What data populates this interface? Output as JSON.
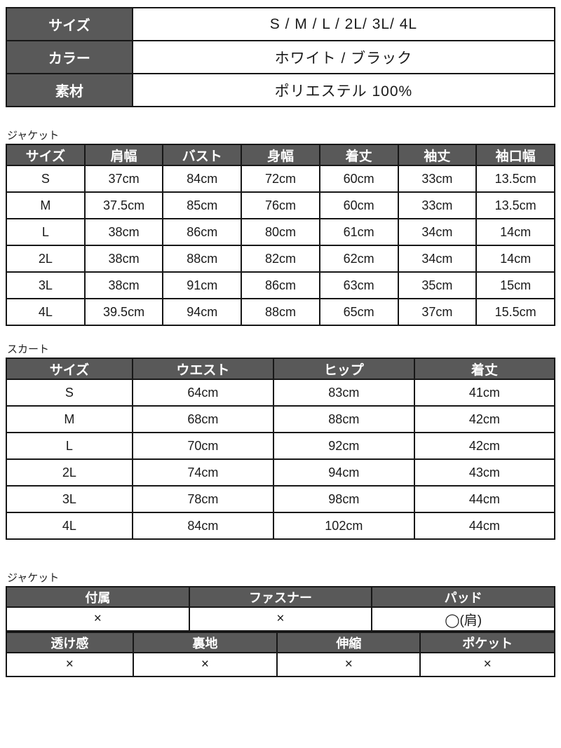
{
  "colors": {
    "header_bg": "#595959",
    "header_text": "#ffffff",
    "border": "#171717",
    "cell_text": "#1a1a1a"
  },
  "info_table": {
    "rows": [
      {
        "label": "サイズ",
        "value": "S / M / L / 2L/ 3L/ 4L"
      },
      {
        "label": "カラー",
        "value": "ホワイト / ブラック"
      },
      {
        "label": "素材",
        "value": "ポリエステル 100%"
      }
    ]
  },
  "jacket_section": {
    "label": "ジャケット",
    "headers": [
      "サイズ",
      "肩幅",
      "バスト",
      "身幅",
      "着丈",
      "袖丈",
      "袖口幅"
    ],
    "rows": [
      [
        "S",
        "37cm",
        "84cm",
        "72cm",
        "60cm",
        "33cm",
        "13.5cm"
      ],
      [
        "M",
        "37.5cm",
        "85cm",
        "76cm",
        "60cm",
        "33cm",
        "13.5cm"
      ],
      [
        "L",
        "38cm",
        "86cm",
        "80cm",
        "61cm",
        "34cm",
        "14cm"
      ],
      [
        "2L",
        "38cm",
        "88cm",
        "82cm",
        "62cm",
        "34cm",
        "14cm"
      ],
      [
        "3L",
        "38cm",
        "91cm",
        "86cm",
        "63cm",
        "35cm",
        "15cm"
      ],
      [
        "4L",
        "39.5cm",
        "94cm",
        "88cm",
        "65cm",
        "37cm",
        "15.5cm"
      ]
    ]
  },
  "skirt_section": {
    "label": "スカート",
    "headers": [
      "サイズ",
      "ウエスト",
      "ヒップ",
      "着丈"
    ],
    "rows": [
      [
        "S",
        "64cm",
        "83cm",
        "41cm"
      ],
      [
        "M",
        "68cm",
        "88cm",
        "42cm"
      ],
      [
        "L",
        "70cm",
        "92cm",
        "42cm"
      ],
      [
        "2L",
        "74cm",
        "94cm",
        "43cm"
      ],
      [
        "3L",
        "78cm",
        "98cm",
        "44cm"
      ],
      [
        "4L",
        "84cm",
        "102cm",
        "44cm"
      ]
    ]
  },
  "details_section": {
    "label": "ジャケット",
    "table_a": {
      "headers": [
        "付属",
        "ファスナー",
        "パッド"
      ],
      "values": [
        "×",
        "×",
        "◯(肩)"
      ]
    },
    "table_b": {
      "headers": [
        "透け感",
        "裏地",
        "伸縮",
        "ポケット"
      ],
      "values": [
        "×",
        "×",
        "×",
        "×"
      ]
    }
  }
}
